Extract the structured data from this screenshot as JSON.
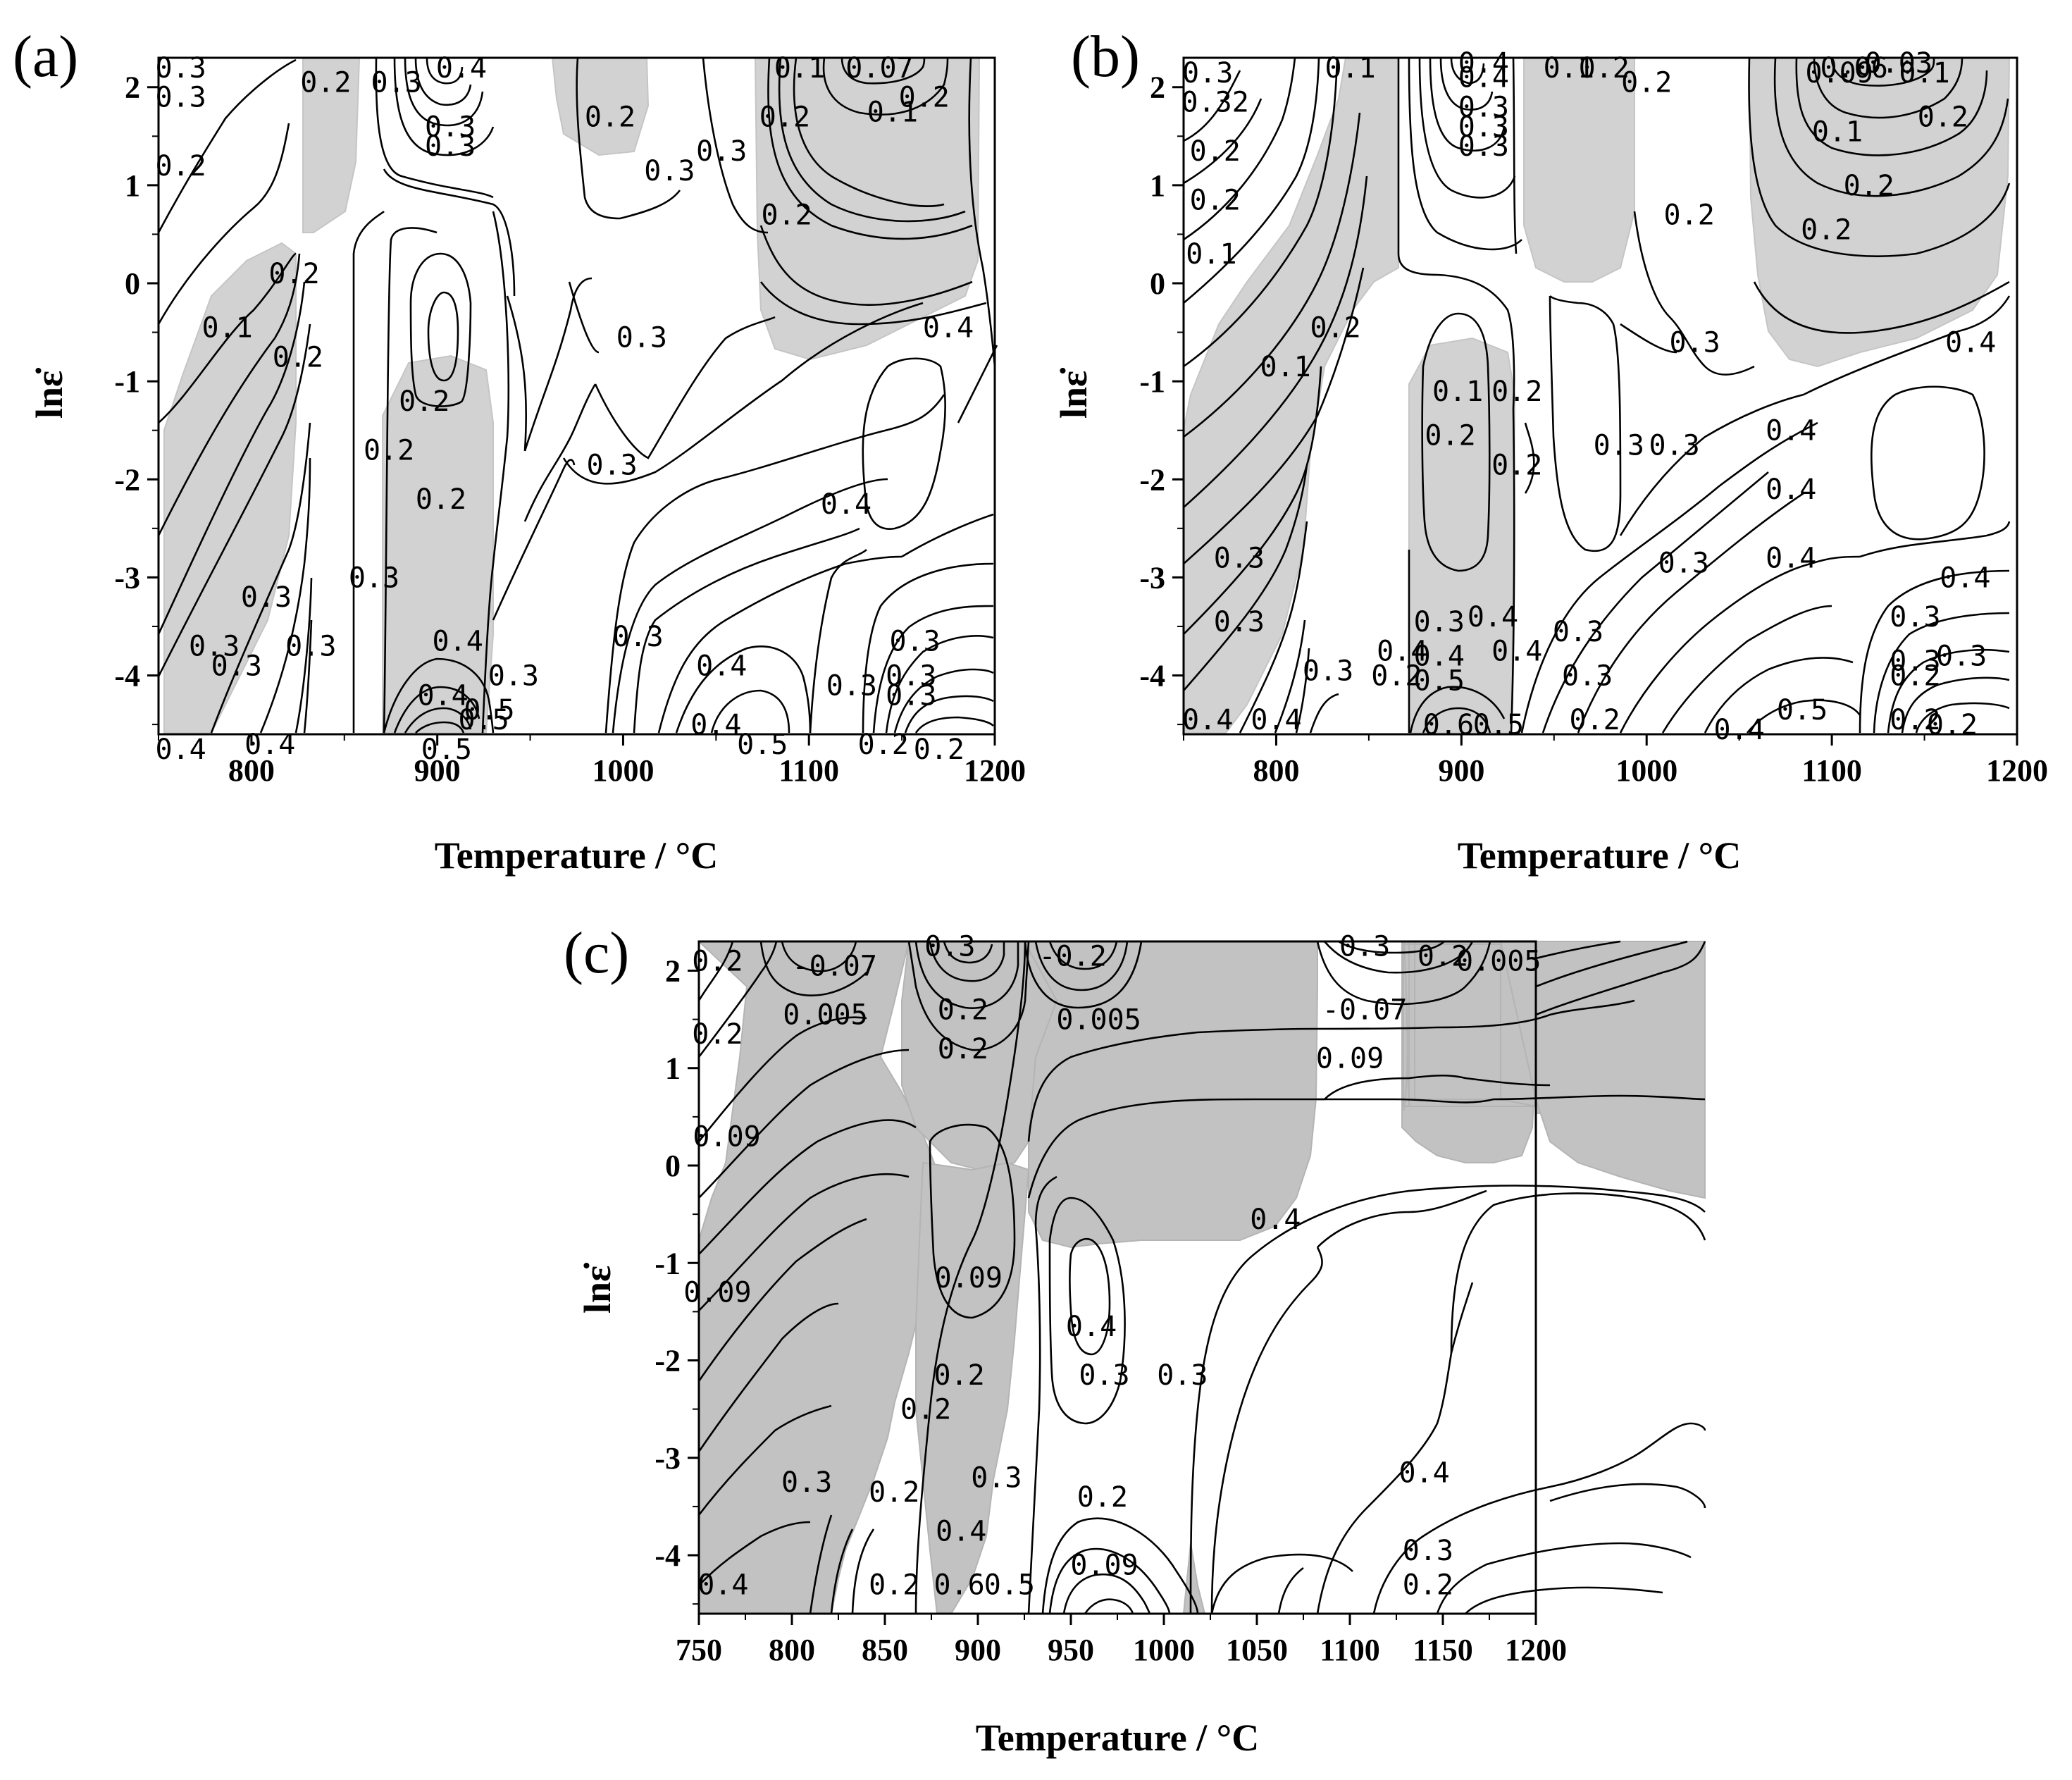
{
  "chart_data": [
    {
      "type": "contour",
      "panel_label": "(a)",
      "xlabel": "Temperature / °C",
      "ylabel": "lnε̇",
      "xlim": [
        750,
        1200
      ],
      "ylim": [
        -4.6,
        2.3
      ],
      "xticks": [
        "800",
        "900",
        "1000",
        "1100",
        "1200"
      ],
      "yticks": [
        "2",
        "1",
        "0",
        "-1",
        "-2",
        "-3",
        "-4"
      ],
      "contour_labels": [
        {
          "text": "0.3",
          "x": 762,
          "y": 2.1
        },
        {
          "text": "0.3",
          "x": 762,
          "y": 1.8
        },
        {
          "text": "0.2",
          "x": 840,
          "y": 1.95
        },
        {
          "text": "0.3",
          "x": 878,
          "y": 1.95
        },
        {
          "text": "0.4",
          "x": 913,
          "y": 2.1
        },
        {
          "text": "0.3",
          "x": 907,
          "y": 1.5
        },
        {
          "text": "0.3",
          "x": 907,
          "y": 1.3
        },
        {
          "text": "0.2",
          "x": 993,
          "y": 1.6
        },
        {
          "text": "0.3",
          "x": 1025,
          "y": 1.05
        },
        {
          "text": "0.3",
          "x": 1053,
          "y": 1.25
        },
        {
          "text": "0.1",
          "x": 1095,
          "y": 2.1
        },
        {
          "text": "0.07",
          "x": 1138,
          "y": 2.1
        },
        {
          "text": "0.1",
          "x": 1145,
          "y": 1.65
        },
        {
          "text": "0.2",
          "x": 1162,
          "y": 1.8
        },
        {
          "text": "0.2",
          "x": 1087,
          "y": 1.6
        },
        {
          "text": "0.2",
          "x": 1088,
          "y": 0.6
        },
        {
          "text": "0.2",
          "x": 762,
          "y": 1.1
        },
        {
          "text": "0.2",
          "x": 823,
          "y": 0.0
        },
        {
          "text": "0.1",
          "x": 787,
          "y": -0.55
        },
        {
          "text": "0.2",
          "x": 825,
          "y": -0.85
        },
        {
          "text": "0.3",
          "x": 1010,
          "y": -0.65
        },
        {
          "text": "0.4",
          "x": 1175,
          "y": -0.55
        },
        {
          "text": "0.2",
          "x": 893,
          "y": -1.3
        },
        {
          "text": "0.2",
          "x": 874,
          "y": -1.8
        },
        {
          "text": "0.2",
          "x": 902,
          "y": -2.3
        },
        {
          "text": "0.3",
          "x": 994,
          "y": -1.95
        },
        {
          "text": "0.4",
          "x": 1120,
          "y": -2.35
        },
        {
          "text": "0.3",
          "x": 866,
          "y": -3.1
        },
        {
          "text": "0.3",
          "x": 808,
          "y": -3.3
        },
        {
          "text": "0.3",
          "x": 780,
          "y": -3.8
        },
        {
          "text": "0.3",
          "x": 792,
          "y": -4.0
        },
        {
          "text": "0.3",
          "x": 832,
          "y": -3.8
        },
        {
          "text": "0.3",
          "x": 1008,
          "y": -3.7
        },
        {
          "text": "0.4",
          "x": 1053,
          "y": -4.0
        },
        {
          "text": "0.3",
          "x": 1157,
          "y": -3.75
        },
        {
          "text": "0.3",
          "x": 1123,
          "y": -4.2
        },
        {
          "text": "0.3",
          "x": 1155,
          "y": -4.1
        },
        {
          "text": "0.3",
          "x": 1155,
          "y": -4.3
        },
        {
          "text": "0.4",
          "x": 911,
          "y": -3.75
        },
        {
          "text": "0.4",
          "x": 903,
          "y": -4.3
        },
        {
          "text": "0.5",
          "x": 925,
          "y": -4.55
        },
        {
          "text": "0.5",
          "x": 928,
          "y": -4.45
        },
        {
          "text": "0.3",
          "x": 941,
          "y": -4.1
        },
        {
          "text": "0.5",
          "x": 905,
          "y": -4.85
        },
        {
          "text": "0.4",
          "x": 1050,
          "y": -4.6
        },
        {
          "text": "0.5",
          "x": 1075,
          "y": -4.8
        },
        {
          "text": "0.2",
          "x": 1140,
          "y": -4.8
        },
        {
          "text": "0.2",
          "x": 1170,
          "y": -4.85
        },
        {
          "text": "0.4",
          "x": 762,
          "y": -4.85
        },
        {
          "text": "0.4",
          "x": 810,
          "y": -4.8
        }
      ]
    },
    {
      "type": "contour",
      "panel_label": "(b)",
      "xlabel": "Temperature / °C",
      "ylabel": "lnε̇",
      "xlim": [
        750,
        1200
      ],
      "ylim": [
        -4.6,
        2.3
      ],
      "xticks": [
        "800",
        "900",
        "1000",
        "1100",
        "1200"
      ],
      "yticks": [
        "2",
        "1",
        "0",
        "-1",
        "-2",
        "-3",
        "-4"
      ],
      "contour_labels": [
        {
          "text": "0.3",
          "x": 763,
          "y": 2.05
        },
        {
          "text": "0.32",
          "x": 767,
          "y": 1.75
        },
        {
          "text": "0.1",
          "x": 840,
          "y": 2.1
        },
        {
          "text": "0.4",
          "x": 912,
          "y": 2.15
        },
        {
          "text": "0.4",
          "x": 912,
          "y": 2.0
        },
        {
          "text": "0.3",
          "x": 912,
          "y": 1.7
        },
        {
          "text": "0.3",
          "x": 912,
          "y": 1.5
        },
        {
          "text": "0.3",
          "x": 912,
          "y": 1.3
        },
        {
          "text": "0.1",
          "x": 958,
          "y": 2.1
        },
        {
          "text": "0.2",
          "x": 977,
          "y": 2.1
        },
        {
          "text": "0.2",
          "x": 1000,
          "y": 1.95
        },
        {
          "text": "0.2",
          "x": 1023,
          "y": 0.6
        },
        {
          "text": "0.06",
          "x": 1112,
          "y": 2.1
        },
        {
          "text": "0.03",
          "x": 1136,
          "y": 2.15
        },
        {
          "text": "0.09",
          "x": 1104,
          "y": 2.05
        },
        {
          "text": "0.1",
          "x": 1150,
          "y": 2.05
        },
        {
          "text": "0.2",
          "x": 1160,
          "y": 1.6
        },
        {
          "text": "0.1",
          "x": 1103,
          "y": 1.45
        },
        {
          "text": "0.2",
          "x": 1120,
          "y": 0.9
        },
        {
          "text": "0.2",
          "x": 1097,
          "y": 0.45
        },
        {
          "text": "0.2",
          "x": 767,
          "y": 1.25
        },
        {
          "text": "0.2",
          "x": 767,
          "y": 0.75
        },
        {
          "text": "0.1",
          "x": 765,
          "y": 0.2
        },
        {
          "text": "0.2",
          "x": 832,
          "y": -0.55
        },
        {
          "text": "0.1",
          "x": 805,
          "y": -0.95
        },
        {
          "text": "0.3",
          "x": 1026,
          "y": -0.7
        },
        {
          "text": "0.4",
          "x": 1175,
          "y": -0.7
        },
        {
          "text": "0.1",
          "x": 898,
          "y": -1.2
        },
        {
          "text": "0.2",
          "x": 930,
          "y": -1.2
        },
        {
          "text": "0.2",
          "x": 894,
          "y": -1.65
        },
        {
          "text": "0.2",
          "x": 930,
          "y": -1.95
        },
        {
          "text": "0.3",
          "x": 985,
          "y": -1.75
        },
        {
          "text": "0.3",
          "x": 1015,
          "y": -1.75
        },
        {
          "text": "0.4",
          "x": 1078,
          "y": -1.6
        },
        {
          "text": "0.4",
          "x": 1078,
          "y": -2.2
        },
        {
          "text": "0.4",
          "x": 1078,
          "y": -2.9
        },
        {
          "text": "0.3",
          "x": 1020,
          "y": -2.95
        },
        {
          "text": "0.3",
          "x": 780,
          "y": -2.9
        },
        {
          "text": "0.3",
          "x": 780,
          "y": -3.55
        },
        {
          "text": "0.3",
          "x": 888,
          "y": -3.55
        },
        {
          "text": "0.4",
          "x": 917,
          "y": -3.5
        },
        {
          "text": "0.3",
          "x": 963,
          "y": -3.65
        },
        {
          "text": "0.4",
          "x": 1172,
          "y": -3.1
        },
        {
          "text": "0.3",
          "x": 1145,
          "y": -3.5
        },
        {
          "text": "0.3",
          "x": 1145,
          "y": -3.95
        },
        {
          "text": "0.3",
          "x": 1170,
          "y": -3.9
        },
        {
          "text": "0.2",
          "x": 1145,
          "y": -4.1
        },
        {
          "text": "0.4",
          "x": 868,
          "y": -3.85
        },
        {
          "text": "0.4",
          "x": 888,
          "y": -3.9
        },
        {
          "text": "0.4",
          "x": 930,
          "y": -3.85
        },
        {
          "text": "0.5",
          "x": 888,
          "y": -4.15
        },
        {
          "text": "0.3",
          "x": 828,
          "y": -4.05
        },
        {
          "text": "0.2",
          "x": 865,
          "y": -4.1
        },
        {
          "text": "0.3",
          "x": 968,
          "y": -4.1
        },
        {
          "text": "0.5",
          "x": 1084,
          "y": -4.45
        },
        {
          "text": "0.4",
          "x": 1050,
          "y": -4.65
        },
        {
          "text": "0.2",
          "x": 972,
          "y": -4.55
        },
        {
          "text": "0.2",
          "x": 1145,
          "y": -4.55
        },
        {
          "text": "0.2",
          "x": 1165,
          "y": -4.6
        },
        {
          "text": "0.4",
          "x": 763,
          "y": -4.55
        },
        {
          "text": "0.4",
          "x": 800,
          "y": -4.55
        },
        {
          "text": "0.6",
          "x": 893,
          "y": -4.6
        },
        {
          "text": "0.5",
          "x": 920,
          "y": -4.6
        }
      ]
    },
    {
      "type": "contour",
      "panel_label": "(c)",
      "xlabel": "Temperature / °C",
      "ylabel": "lnε̇",
      "xlim": [
        750,
        1200
      ],
      "ylim": [
        -4.6,
        2.3
      ],
      "xticks": [
        "750",
        "800",
        "850",
        "900",
        "950",
        "1000",
        "1050",
        "1100",
        "1150",
        "1200"
      ],
      "yticks": [
        "2",
        "1",
        "0",
        "-1",
        "-2",
        "-3",
        "-4"
      ],
      "contour_labels": [
        {
          "text": "0.2",
          "x": 760,
          "y": 2.0
        },
        {
          "text": "-0.07",
          "x": 823,
          "y": 1.95
        },
        {
          "text": "0.3",
          "x": 885,
          "y": 2.15
        },
        {
          "text": "-0.2",
          "x": 951,
          "y": 2.05
        },
        {
          "text": "0.3",
          "x": 1108,
          "y": 2.15
        },
        {
          "text": "0.2",
          "x": 1150,
          "y": 2.05
        },
        {
          "text": "0.005",
          "x": 1180,
          "y": 2.0
        },
        {
          "text": "0.005",
          "x": 818,
          "y": 1.45
        },
        {
          "text": "0.2",
          "x": 892,
          "y": 1.5
        },
        {
          "text": "0.005",
          "x": 965,
          "y": 1.4
        },
        {
          "text": "-0.07",
          "x": 1108,
          "y": 1.5
        },
        {
          "text": "0.2",
          "x": 760,
          "y": 1.25
        },
        {
          "text": "0.2",
          "x": 892,
          "y": 1.1
        },
        {
          "text": "0.09",
          "x": 1100,
          "y": 1.0
        },
        {
          "text": "0.09",
          "x": 765,
          "y": 0.2
        },
        {
          "text": "0.4",
          "x": 1060,
          "y": -0.65
        },
        {
          "text": "0.09",
          "x": 895,
          "y": -1.25
        },
        {
          "text": "0.09",
          "x": 760,
          "y": -1.4
        },
        {
          "text": "0.4",
          "x": 961,
          "y": -1.75
        },
        {
          "text": "0.2",
          "x": 890,
          "y": -2.25
        },
        {
          "text": "0.3",
          "x": 968,
          "y": -2.25
        },
        {
          "text": "0.3",
          "x": 1010,
          "y": -2.25
        },
        {
          "text": "0.2",
          "x": 872,
          "y": -2.6
        },
        {
          "text": "0.4",
          "x": 1140,
          "y": -3.25
        },
        {
          "text": "0.3",
          "x": 808,
          "y": -3.35
        },
        {
          "text": "0.2",
          "x": 855,
          "y": -3.45
        },
        {
          "text": "0.3",
          "x": 910,
          "y": -3.3
        },
        {
          "text": "0.2",
          "x": 967,
          "y": -3.5
        },
        {
          "text": "0.4",
          "x": 891,
          "y": -3.85
        },
        {
          "text": "0.3",
          "x": 1142,
          "y": -4.05
        },
        {
          "text": "0.09",
          "x": 968,
          "y": -4.2
        },
        {
          "text": "0.2",
          "x": 855,
          "y": -4.4
        },
        {
          "text": "0.6",
          "x": 890,
          "y": -4.4
        },
        {
          "text": "0.5",
          "x": 917,
          "y": -4.4
        },
        {
          "text": "0.2",
          "x": 1142,
          "y": -4.4
        },
        {
          "text": "0.4",
          "x": 763,
          "y": -4.4
        }
      ]
    }
  ]
}
